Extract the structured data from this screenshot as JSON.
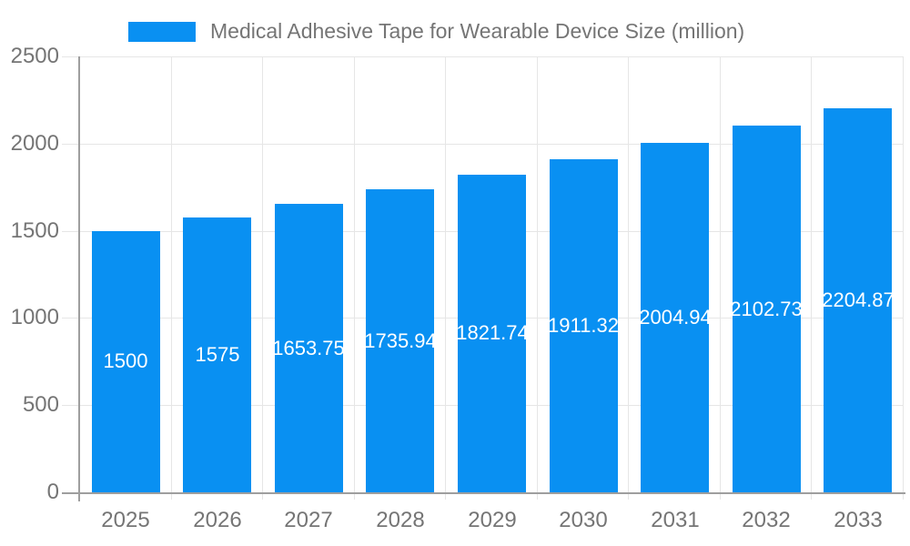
{
  "chart_data": {
    "type": "bar",
    "title": "Medical Adhesive Tape for Wearable Device Size (million)",
    "legend_position": "top",
    "categories": [
      "2025",
      "2026",
      "2027",
      "2028",
      "2029",
      "2030",
      "2031",
      "2032",
      "2033"
    ],
    "series": [
      {
        "name": "Medical Adhesive Tape for Wearable Device Size (million)",
        "values": [
          1500,
          1575,
          1653.75,
          1735.94,
          1821.74,
          1911.32,
          2004.94,
          2102.73,
          2204.87
        ]
      }
    ],
    "value_labels": [
      "1500",
      "1575",
      "1653.75",
      "1735.94",
      "1821.74",
      "1911.32",
      "2004.94",
      "2102.73",
      "2204.87"
    ],
    "xlabel": "",
    "ylabel": "",
    "ylim": [
      0,
      2500
    ],
    "yticks": [
      0,
      500,
      1000,
      1500,
      2000,
      2500
    ],
    "grid": true,
    "colors": {
      "bar": "#0990f2",
      "grid": "#e6e6e6",
      "axis": "#9e9e9e",
      "label_text": "#757575",
      "value_text": "#ffffff",
      "background": "#ffffff"
    }
  }
}
